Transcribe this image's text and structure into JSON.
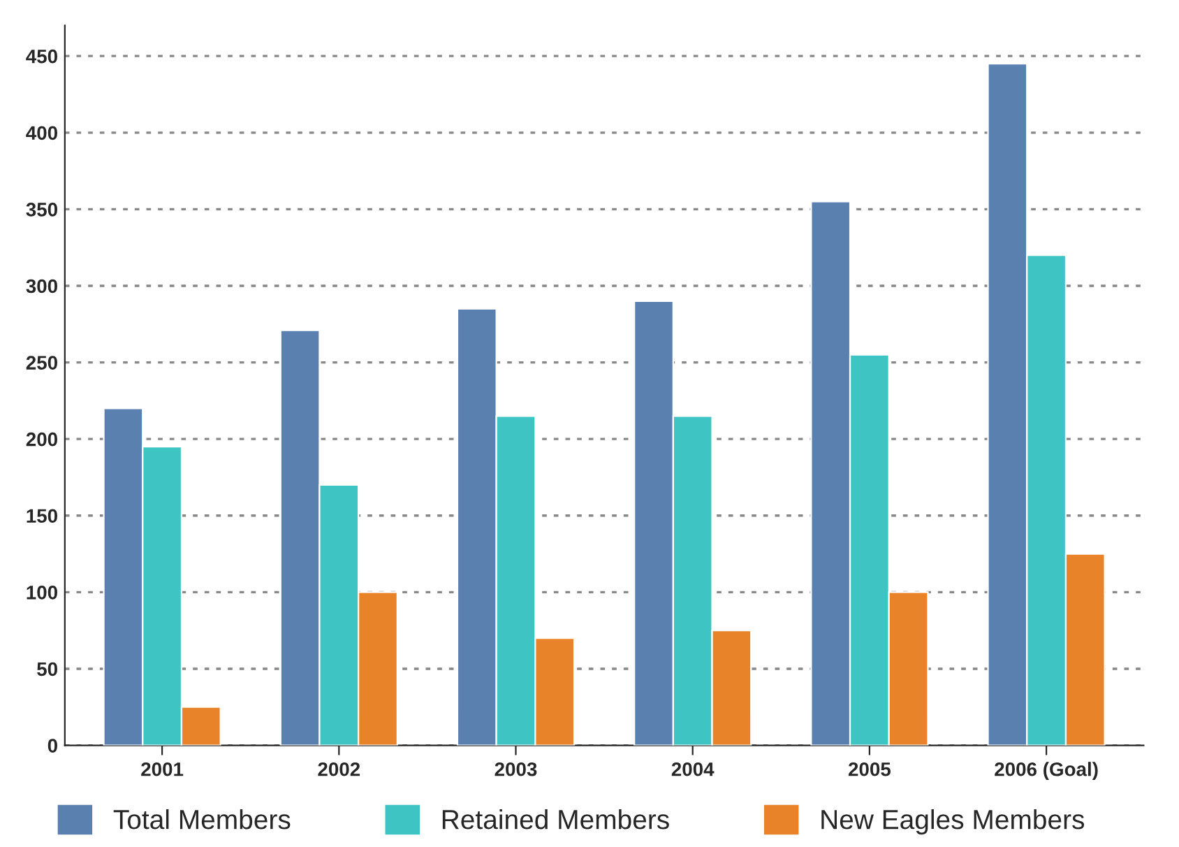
{
  "chart_data": {
    "type": "bar",
    "categories": [
      "2001",
      "2002",
      "2003",
      "2004",
      "2005",
      "2006 (Goal)"
    ],
    "series": [
      {
        "name": "Total Members",
        "color": "#5a80b0",
        "values": [
          220,
          271,
          285,
          290,
          355,
          445
        ]
      },
      {
        "name": "Retained Members",
        "color": "#3fc4c4",
        "values": [
          195,
          170,
          215,
          215,
          255,
          320
        ]
      },
      {
        "name": "New Eagles Members",
        "color": "#e8832a",
        "values": [
          25,
          100,
          70,
          75,
          100,
          125
        ]
      }
    ],
    "ylim": [
      0,
      470
    ],
    "yticks": [
      0,
      50,
      100,
      150,
      200,
      250,
      300,
      350,
      400,
      450
    ],
    "grid": "y",
    "legend": "bottom"
  }
}
